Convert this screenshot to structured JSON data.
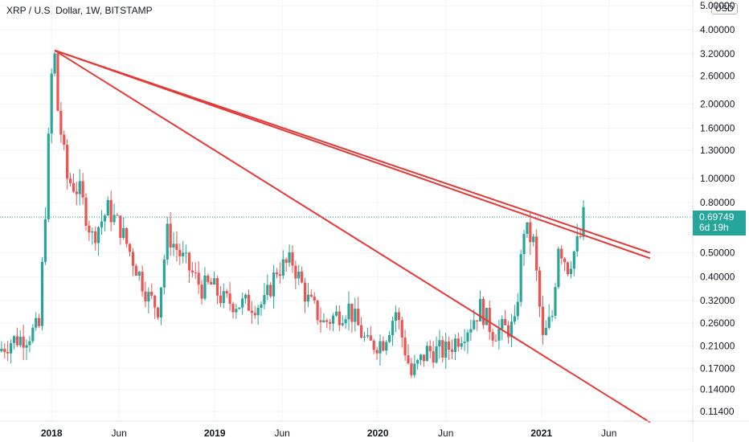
{
  "header": {
    "title": "XRP / U.S. Dollar, 1W, BITSTAMP"
  },
  "currency_button": {
    "label": "USD"
  },
  "last_price": {
    "value": "0.69749",
    "countdown": "6d 19h"
  },
  "colors": {
    "up": "#26a69a",
    "down": "#ef5350",
    "trendline": "#e53935",
    "price_line": "#26a69a",
    "background": "#ffffff",
    "axis_text": "#131722"
  },
  "chart_data": {
    "type": "candlestick",
    "scale": "log",
    "symbol": "XRP / U.S. Dollar",
    "interval": "1W",
    "exchange": "BITSTAMP",
    "y_ticks": [
      "5.00000",
      "4.00000",
      "3.20000",
      "2.60000",
      "2.00000",
      "1.60000",
      "1.30000",
      "1.00000",
      "0.80000",
      "0.50000",
      "0.40000",
      "0.32000",
      "0.26000",
      "0.21000",
      "0.17000",
      "0.14000",
      "0.11400"
    ],
    "x_ticks": [
      "2018",
      "Jun",
      "2019",
      "Jun",
      "2020",
      "Jun",
      "2021",
      "Jun"
    ],
    "ylim": [
      0.105,
      5.0
    ],
    "path_points": [
      [
        "2017-09-04",
        0.2
      ],
      [
        "2017-10-02",
        0.22
      ],
      [
        "2017-11-06",
        0.23
      ],
      [
        "2017-12-04",
        0.25
      ],
      [
        "2017-12-18",
        0.75
      ],
      [
        "2018-01-01",
        2.6
      ],
      [
        "2018-01-08",
        3.1
      ],
      [
        "2018-01-15",
        1.9
      ],
      [
        "2018-02-05",
        1.0
      ],
      [
        "2018-03-05",
        0.88
      ],
      [
        "2018-04-02",
        0.58
      ],
      [
        "2018-05-07",
        0.75
      ],
      [
        "2018-06-04",
        0.63
      ],
      [
        "2018-07-02",
        0.47
      ],
      [
        "2018-08-06",
        0.33
      ],
      [
        "2018-08-27",
        0.3
      ],
      [
        "2018-09-17",
        0.6
      ],
      [
        "2018-10-22",
        0.47
      ],
      [
        "2018-12-03",
        0.36
      ],
      [
        "2018-12-24",
        0.37
      ],
      [
        "2019-01-21",
        0.32
      ],
      [
        "2019-03-04",
        0.31
      ],
      [
        "2019-04-22",
        0.31
      ],
      [
        "2019-05-20",
        0.43
      ],
      [
        "2019-06-24",
        0.46
      ],
      [
        "2019-07-29",
        0.32
      ],
      [
        "2019-09-02",
        0.26
      ],
      [
        "2019-10-28",
        0.3
      ],
      [
        "2019-12-09",
        0.21
      ],
      [
        "2020-01-13",
        0.22
      ],
      [
        "2020-02-10",
        0.29
      ],
      [
        "2020-03-16",
        0.16
      ],
      [
        "2020-04-20",
        0.2
      ],
      [
        "2020-06-01",
        0.2
      ],
      [
        "2020-07-27",
        0.26
      ],
      [
        "2020-08-17",
        0.3
      ],
      [
        "2020-09-14",
        0.24
      ],
      [
        "2020-11-02",
        0.25
      ],
      [
        "2020-11-23",
        0.63
      ],
      [
        "2020-12-14",
        0.55
      ],
      [
        "2021-01-04",
        0.22
      ],
      [
        "2021-01-25",
        0.28
      ],
      [
        "2021-02-08",
        0.55
      ],
      [
        "2021-03-01",
        0.44
      ],
      [
        "2021-03-29",
        0.58
      ],
      [
        "2021-04-05",
        0.7
      ]
    ],
    "trendlines": [
      {
        "from": [
          "2018-01-08",
          3.3
        ],
        "to": [
          "2021-09-01",
          0.103
        ]
      },
      {
        "from": [
          "2018-01-08",
          3.3
        ],
        "to": [
          "2021-09-01",
          0.5
        ]
      },
      {
        "from": [
          "2018-01-08",
          3.3
        ],
        "to": [
          "2021-09-01",
          0.475
        ]
      }
    ],
    "current_price": 0.69749
  }
}
